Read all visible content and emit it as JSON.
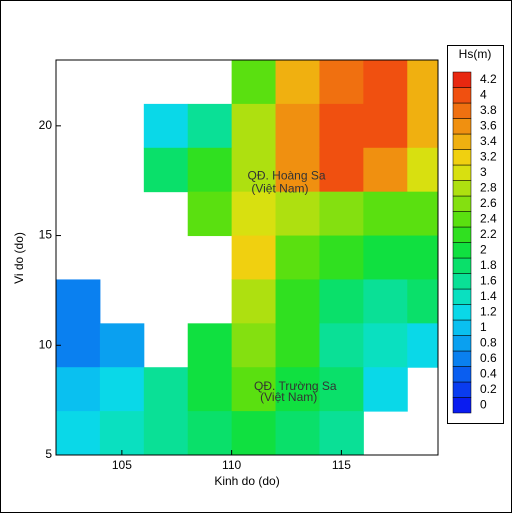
{
  "chart_data": {
    "type": "heatmap",
    "x_label": "Kinh do (do)",
    "y_label": "Vi do (do)",
    "xlim": [
      102,
      119.4
    ],
    "ylim": [
      5,
      23
    ],
    "xticks": [
      105,
      110,
      115
    ],
    "yticks": [
      5,
      10,
      15,
      20
    ],
    "x": [
      103,
      105,
      107,
      109,
      111,
      113,
      115,
      117,
      119
    ],
    "y": [
      22,
      20,
      18,
      16,
      14,
      12,
      10,
      8,
      6
    ],
    "cell_size": 2,
    "z": [
      [
        null,
        null,
        null,
        null,
        2.4,
        3.4,
        3.8,
        4.0,
        3.4
      ],
      [
        null,
        null,
        1.2,
        1.6,
        2.8,
        3.6,
        4.0,
        4.0,
        3.4
      ],
      [
        null,
        null,
        1.8,
        2.2,
        2.8,
        3.6,
        4.0,
        3.6,
        3.0
      ],
      [
        null,
        null,
        null,
        2.4,
        3.0,
        2.8,
        2.6,
        2.4,
        2.4
      ],
      [
        null,
        null,
        null,
        null,
        3.2,
        2.4,
        2.2,
        2.0,
        2.0
      ],
      [
        0.6,
        null,
        null,
        null,
        2.8,
        2.2,
        1.8,
        1.6,
        1.8
      ],
      [
        0.6,
        0.8,
        null,
        2.0,
        2.6,
        2.2,
        1.6,
        1.4,
        1.2
      ],
      [
        1.0,
        1.2,
        1.6,
        2.0,
        2.4,
        2.0,
        1.8,
        1.2,
        null
      ],
      [
        1.2,
        1.4,
        1.6,
        1.8,
        2.0,
        1.8,
        1.6,
        null,
        null
      ]
    ],
    "colorbar_title": "Hs(m)",
    "levels": [
      0,
      0.2,
      0.4,
      0.6,
      0.8,
      1,
      1.2,
      1.4,
      1.6,
      1.8,
      2,
      2.2,
      2.4,
      2.6,
      2.8,
      3,
      3.2,
      3.4,
      3.6,
      3.8,
      4,
      4.2
    ],
    "level_colors": [
      "#0a1cf0",
      "#0a3cf0",
      "#0a5ef0",
      "#0a80f0",
      "#0aa0f0",
      "#0ac0f0",
      "#0ad8e8",
      "#0ae0c0",
      "#0ae096",
      "#0ae06a",
      "#10e040",
      "#30e020",
      "#5ae010",
      "#84e010",
      "#aee010",
      "#d8e010",
      "#f0d010",
      "#f0b010",
      "#f09010",
      "#f07010",
      "#f05010",
      "#e82810"
    ],
    "annotations": [
      {
        "text": "QĐ. Hoàng Sa",
        "x": 112.5,
        "y": 17.7
      },
      {
        "text": "(Việt Nam)",
        "x": 112.2,
        "y": 17.1
      },
      {
        "text": "QĐ. Trường Sa",
        "x": 112.9,
        "y": 8.1
      },
      {
        "text": "(Việt Nam)",
        "x": 112.6,
        "y": 7.6
      }
    ]
  }
}
